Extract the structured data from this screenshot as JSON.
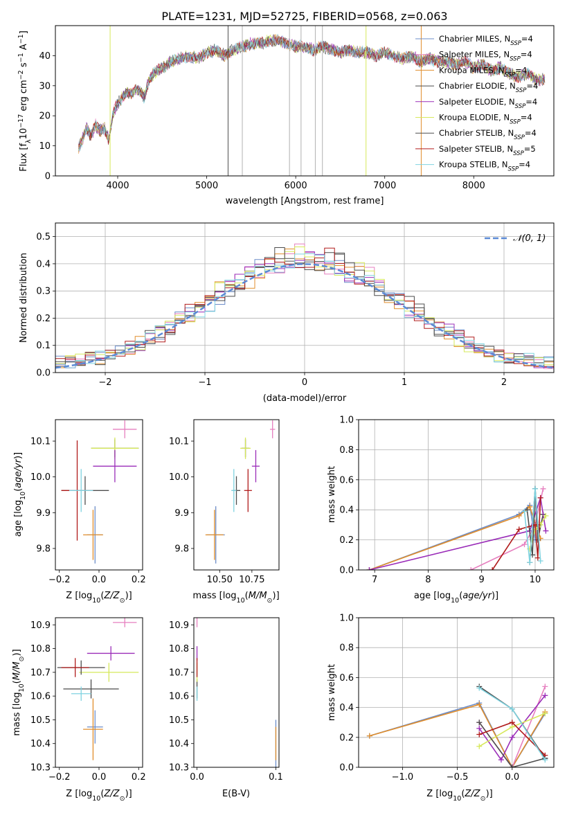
{
  "title": "PLATE=1231, MJD=52725, FIBERID=0568, z=0.063",
  "colors": {
    "Chabrier MILES": "#6b8cc8",
    "Salpeter MILES": "#e67fbf",
    "Kroupa MILES": "#e08d2b",
    "Chabrier ELODIE": "#4a4a4a",
    "Salpeter ELODIE": "#9a2cb8",
    "Kroupa ELODIE": "#d6e85a",
    "Chabrier STELIB": "#4d4d4d",
    "Salpeter STELIB": "#b01a1a",
    "Kroupa STELIB": "#7fd3e0"
  },
  "legend": [
    {
      "text": "Chabrier MILES, N",
      "sub": "SSP",
      "tail": "=4",
      "key": "Chabrier MILES"
    },
    {
      "text": "Salpeter MILES, N",
      "sub": "SSP",
      "tail": "=4",
      "key": "Salpeter MILES"
    },
    {
      "text": "Kroupa MILES, N",
      "sub": "SSP",
      "tail": "=4",
      "key": "Kroupa MILES"
    },
    {
      "text": "Chabrier ELODIE, N",
      "sub": "SSP",
      "tail": "=4",
      "key": "Chabrier ELODIE"
    },
    {
      "text": "Salpeter ELODIE, N",
      "sub": "SSP",
      "tail": "=4",
      "key": "Salpeter ELODIE"
    },
    {
      "text": "Kroupa ELODIE, N",
      "sub": "SSP",
      "tail": "=4",
      "key": "Kroupa ELODIE"
    },
    {
      "text": "Chabrier STELIB, N",
      "sub": "SSP",
      "tail": "=4",
      "key": "Chabrier STELIB"
    },
    {
      "text": "Salpeter STELIB, N",
      "sub": "SSP",
      "tail": "=5",
      "key": "Salpeter STELIB"
    },
    {
      "text": "Kroupa STELIB, N",
      "sub": "SSP",
      "tail": "=4",
      "key": "Kroupa STELIB"
    }
  ],
  "chart_data": [
    {
      "type": "line",
      "xlabel": "wavelength [Angstrom, rest frame]",
      "ylabel": "Flux [fλ10⁻¹⁷ erg cm⁻² s⁻¹ A⁻¹]",
      "xlim": [
        3300,
        8900
      ],
      "ylim": [
        0,
        50
      ],
      "xticks": [
        4000,
        5000,
        6000,
        7000,
        8000
      ],
      "yticks": [
        0,
        10,
        20,
        30,
        40
      ],
      "grid": false,
      "legend_position": "top-right",
      "spectrum_anchors": [
        [
          3560,
          9
        ],
        [
          3600,
          12
        ],
        [
          3650,
          16
        ],
        [
          3700,
          13
        ],
        [
          3750,
          17
        ],
        [
          3800,
          15
        ],
        [
          3850,
          16
        ],
        [
          3900,
          12
        ],
        [
          3950,
          21
        ],
        [
          4000,
          24
        ],
        [
          4050,
          26
        ],
        [
          4100,
          28
        ],
        [
          4150,
          27
        ],
        [
          4200,
          29
        ],
        [
          4250,
          28
        ],
        [
          4300,
          26
        ],
        [
          4350,
          32
        ],
        [
          4400,
          34
        ],
        [
          4450,
          35
        ],
        [
          4500,
          36
        ],
        [
          4600,
          38
        ],
        [
          4700,
          39
        ],
        [
          4800,
          40
        ],
        [
          4900,
          39
        ],
        [
          5000,
          41
        ],
        [
          5100,
          42
        ],
        [
          5200,
          40
        ],
        [
          5300,
          42
        ],
        [
          5400,
          43
        ],
        [
          5500,
          44
        ],
        [
          5600,
          44
        ],
        [
          5700,
          45
        ],
        [
          5800,
          45
        ],
        [
          5900,
          44
        ],
        [
          6000,
          43
        ],
        [
          6100,
          43
        ],
        [
          6200,
          42
        ],
        [
          6300,
          43
        ],
        [
          6400,
          42
        ],
        [
          6500,
          41
        ],
        [
          6600,
          42
        ],
        [
          6700,
          41
        ],
        [
          6800,
          41
        ],
        [
          6900,
          40
        ],
        [
          7000,
          41
        ],
        [
          7100,
          40
        ],
        [
          7200,
          39
        ],
        [
          7300,
          40
        ],
        [
          7400,
          38
        ],
        [
          7500,
          39
        ],
        [
          7600,
          38
        ],
        [
          7700,
          38
        ],
        [
          7800,
          37
        ],
        [
          7900,
          38
        ],
        [
          8000,
          36
        ],
        [
          8100,
          37
        ],
        [
          8200,
          35
        ],
        [
          8300,
          36
        ],
        [
          8400,
          34
        ],
        [
          8500,
          33
        ],
        [
          8600,
          34
        ],
        [
          8700,
          32
        ],
        [
          8800,
          32
        ]
      ],
      "masked_lines": [
        3915,
        5240,
        5400,
        5930,
        6060,
        6220,
        6300,
        6790,
        7410
      ]
    },
    {
      "type": "histogram",
      "xlabel": "(data-model)/error",
      "ylabel": "Normed distribution",
      "xlim": [
        -2.5,
        2.5
      ],
      "ylim": [
        0,
        0.55
      ],
      "xticks": [
        -2,
        -1,
        0,
        1,
        2
      ],
      "yticks": [
        0.0,
        0.1,
        0.2,
        0.3,
        0.4,
        0.5
      ],
      "grid": true,
      "legend": "𝒩(0, 1)",
      "legend_position": "top-right",
      "bin_width": 0.1,
      "reference_curve": "normal(0,1)"
    },
    {
      "type": "errorbar",
      "xlabel": "Z [log₁₀(Z/Z⊙)]",
      "ylabel": "age  [log₁₀(age/yr)]",
      "xlim": [
        -0.22,
        0.22
      ],
      "ylim": [
        9.74,
        10.16
      ],
      "xticks": [
        -0.2,
        0.0,
        0.2
      ],
      "yticks": [
        9.8,
        9.9,
        10.0,
        10.1
      ],
      "points": [
        {
          "key": "Chabrier MILES",
          "x": -0.02,
          "y": 9.838,
          "xerr": 0.04,
          "yerr": 0.08
        },
        {
          "key": "Kroupa MILES",
          "x": -0.03,
          "y": 9.838,
          "xerr": 0.05,
          "yerr": 0.07
        },
        {
          "key": "Salpeter MILES",
          "x": 0.13,
          "y": 10.133,
          "xerr": 0.06,
          "yerr": 0.025
        },
        {
          "key": "Chabrier ELODIE",
          "x": 0.08,
          "y": 10.08,
          "xerr": 0.12,
          "yerr": 0.025
        },
        {
          "key": "Kroupa ELODIE",
          "x": 0.08,
          "y": 10.08,
          "xerr": 0.12,
          "yerr": 0.03
        },
        {
          "key": "Salpeter ELODIE",
          "x": 0.08,
          "y": 10.03,
          "xerr": 0.11,
          "yerr": 0.045
        },
        {
          "key": "Chabrier STELIB",
          "x": -0.07,
          "y": 9.962,
          "xerr": 0.12,
          "yerr": 0.04
        },
        {
          "key": "Salpeter STELIB",
          "x": -0.11,
          "y": 9.962,
          "xerr": 0.08,
          "yerr": 0.14
        },
        {
          "key": "Kroupa STELIB",
          "x": -0.09,
          "y": 9.962,
          "xerr": 0.06,
          "yerr": 0.06
        }
      ]
    },
    {
      "type": "errorbar",
      "xlabel": "mass [log₁₀(M/M⊙)]",
      "xlim": [
        10.3,
        10.96
      ],
      "ylim": [
        9.74,
        10.16
      ],
      "xticks": [
        10.5,
        10.75
      ],
      "yticks": [
        9.8,
        9.9,
        10.0,
        10.1
      ],
      "points": [
        {
          "key": "Chabrier MILES",
          "x": 10.47,
          "y": 9.838,
          "xerr": 0.07,
          "yerr": 0.08
        },
        {
          "key": "Kroupa MILES",
          "x": 10.46,
          "y": 9.838,
          "xerr": 0.07,
          "yerr": 0.07
        },
        {
          "key": "Salpeter MILES",
          "x": 10.91,
          "y": 10.133,
          "xerr": 0.02,
          "yerr": 0.025
        },
        {
          "key": "Chabrier ELODIE",
          "x": 10.7,
          "y": 10.08,
          "xerr": 0.03,
          "yerr": 0.025
        },
        {
          "key": "Kroupa ELODIE",
          "x": 10.7,
          "y": 10.08,
          "xerr": 0.04,
          "yerr": 0.03
        },
        {
          "key": "Salpeter ELODIE",
          "x": 10.78,
          "y": 10.03,
          "xerr": 0.03,
          "yerr": 0.045
        },
        {
          "key": "Chabrier STELIB",
          "x": 10.63,
          "y": 9.962,
          "xerr": 0.03,
          "yerr": 0.04
        },
        {
          "key": "Salpeter STELIB",
          "x": 10.72,
          "y": 9.962,
          "xerr": 0.03,
          "yerr": 0.06
        },
        {
          "key": "Kroupa STELIB",
          "x": 10.61,
          "y": 9.962,
          "xerr": 0.02,
          "yerr": 0.06
        }
      ]
    },
    {
      "type": "line",
      "xlabel": "age  [log₁₀(age/yr)]",
      "ylabel": "mass weight",
      "xlim": [
        6.7,
        10.35
      ],
      "ylim": [
        0,
        1.0
      ],
      "xticks": [
        7,
        8,
        9,
        10
      ],
      "yticks": [
        0.0,
        0.2,
        0.4,
        0.6,
        0.8,
        1.0
      ],
      "grid": true,
      "series": [
        {
          "key": "Chabrier MILES",
          "x": [
            6.9,
            9.7,
            9.9,
            10.0
          ],
          "y": [
            0.0,
            0.37,
            0.43,
            0.2
          ]
        },
        {
          "key": "Kroupa MILES",
          "x": [
            6.9,
            9.7,
            9.9,
            10.1
          ],
          "y": [
            0.0,
            0.36,
            0.42,
            0.21
          ]
        },
        {
          "key": "Salpeter MILES",
          "x": [
            8.8,
            9.8,
            10.0,
            10.15
          ],
          "y": [
            0.0,
            0.17,
            0.3,
            0.54
          ]
        },
        {
          "key": "Chabrier ELODIE",
          "x": [
            9.9,
            10.0,
            10.05,
            10.15
          ],
          "y": [
            0.05,
            0.54,
            0.2,
            0.37
          ]
        },
        {
          "key": "Salpeter ELODIE",
          "x": [
            6.9,
            9.9,
            10.1,
            10.2
          ],
          "y": [
            0.0,
            0.26,
            0.48,
            0.26
          ]
        },
        {
          "key": "Kroupa ELODIE",
          "x": [
            9.9,
            10.0,
            10.1,
            10.2
          ],
          "y": [
            0.14,
            0.27,
            0.3,
            0.36
          ]
        },
        {
          "key": "Chabrier STELIB",
          "x": [
            9.85,
            9.95,
            10.0,
            10.05
          ],
          "y": [
            0.4,
            0.1,
            0.54,
            0.3
          ]
        },
        {
          "key": "Salpeter STELIB",
          "x": [
            9.2,
            9.7,
            10.0,
            10.05,
            10.1
          ],
          "y": [
            0.0,
            0.27,
            0.3,
            0.08,
            0.48
          ]
        },
        {
          "key": "Kroupa STELIB",
          "x": [
            9.8,
            9.9,
            10.0,
            10.1
          ],
          "y": [
            0.39,
            0.05,
            0.54,
            0.06
          ]
        }
      ]
    },
    {
      "type": "errorbar",
      "xlabel": "Z [log₁₀(Z/Z⊙)]",
      "ylabel": "mass [log₁₀(M/M⊙)]",
      "xlim": [
        -0.22,
        0.22
      ],
      "ylim": [
        10.3,
        10.93
      ],
      "xticks": [
        -0.2,
        0.0,
        0.2
      ],
      "yticks": [
        10.3,
        10.4,
        10.5,
        10.6,
        10.7,
        10.8,
        10.9
      ],
      "points": [
        {
          "key": "Chabrier MILES",
          "x": -0.02,
          "y": 10.47,
          "xerr": 0.04,
          "yerr": 0.07
        },
        {
          "key": "Kroupa MILES",
          "x": -0.03,
          "y": 10.46,
          "xerr": 0.05,
          "yerr": 0.13
        },
        {
          "key": "Salpeter MILES",
          "x": 0.13,
          "y": 10.91,
          "xerr": 0.06,
          "yerr": 0.02
        },
        {
          "key": "Chabrier ELODIE",
          "x": -0.04,
          "y": 10.63,
          "xerr": 0.14,
          "yerr": 0.04
        },
        {
          "key": "Kroupa ELODIE",
          "x": 0.05,
          "y": 10.7,
          "xerr": 0.15,
          "yerr": 0.04
        },
        {
          "key": "Salpeter ELODIE",
          "x": 0.06,
          "y": 10.78,
          "xerr": 0.12,
          "yerr": 0.03
        },
        {
          "key": "Chabrier STELIB",
          "x": -0.09,
          "y": 10.72,
          "xerr": 0.12,
          "yerr": 0.03
        },
        {
          "key": "Salpeter STELIB",
          "x": -0.12,
          "y": 10.72,
          "xerr": 0.07,
          "yerr": 0.04
        },
        {
          "key": "Kroupa STELIB",
          "x": -0.09,
          "y": 10.61,
          "xerr": 0.05,
          "yerr": 0.03
        }
      ]
    },
    {
      "type": "errorbar",
      "xlabel": "E(B-V)",
      "xlim": [
        -0.004,
        0.104
      ],
      "ylim": [
        10.3,
        10.93
      ],
      "xticks": [
        0.0,
        0.1
      ],
      "yticks": [
        10.3,
        10.4,
        10.5,
        10.6,
        10.7,
        10.8,
        10.9
      ],
      "points": [
        {
          "key": "Chabrier MILES",
          "x": 0.1,
          "y": 10.4,
          "xerr": 0,
          "yerr": 0.1
        },
        {
          "key": "Kroupa MILES",
          "x": 0.1,
          "y": 10.4,
          "xerr": 0,
          "yerr": 0.07
        },
        {
          "key": "Salpeter MILES",
          "x": 0.0,
          "y": 10.91,
          "xerr": 0,
          "yerr": 0.02
        },
        {
          "key": "Chabrier ELODIE",
          "x": 0.0,
          "y": 10.63,
          "xerr": 0,
          "yerr": 0.04
        },
        {
          "key": "Kroupa ELODIE",
          "x": 0.0,
          "y": 10.7,
          "xerr": 0,
          "yerr": 0.04
        },
        {
          "key": "Salpeter ELODIE",
          "x": 0.0,
          "y": 10.78,
          "xerr": 0,
          "yerr": 0.03
        },
        {
          "key": "Salpeter STELIB",
          "x": 0.0,
          "y": 10.72,
          "xerr": 0,
          "yerr": 0.04
        },
        {
          "key": "Kroupa STELIB",
          "x": 0.0,
          "y": 10.61,
          "xerr": 0,
          "yerr": 0.03
        }
      ]
    },
    {
      "type": "line",
      "xlabel": "Z [log₁₀(Z/Z⊙)]",
      "ylabel": "mass weight",
      "xlim": [
        -1.4,
        0.38
      ],
      "ylim": [
        0,
        1.0
      ],
      "xticks": [
        -1.0,
        -0.5,
        0.0
      ],
      "yticks": [
        0.0,
        0.2,
        0.4,
        0.6,
        0.8,
        1.0
      ],
      "grid": true,
      "series": [
        {
          "key": "Chabrier MILES",
          "x": [
            -1.3,
            -0.3,
            0.0,
            0.3
          ],
          "y": [
            0.21,
            0.43,
            0.0,
            0.36
          ]
        },
        {
          "key": "Kroupa MILES",
          "x": [
            -1.3,
            -0.3,
            0.0,
            0.3
          ],
          "y": [
            0.21,
            0.42,
            0.0,
            0.37
          ]
        },
        {
          "key": "Salpeter MILES",
          "x": [
            -0.3,
            0.0,
            0.3
          ],
          "y": [
            0.3,
            0.0,
            0.54
          ]
        },
        {
          "key": "Chabrier ELODIE",
          "x": [
            -0.3,
            0.0,
            0.3
          ],
          "y": [
            0.54,
            0.39,
            0.06
          ]
        },
        {
          "key": "Salpeter ELODIE",
          "x": [
            -0.3,
            -0.1,
            0.0,
            0.3
          ],
          "y": [
            0.26,
            0.05,
            0.2,
            0.48
          ]
        },
        {
          "key": "Kroupa ELODIE",
          "x": [
            -0.3,
            0.0,
            0.3
          ],
          "y": [
            0.14,
            0.27,
            0.36
          ]
        },
        {
          "key": "Chabrier STELIB",
          "x": [
            -0.3,
            0.0,
            0.3
          ],
          "y": [
            0.3,
            0.0,
            0.06
          ]
        },
        {
          "key": "Salpeter STELIB",
          "x": [
            -0.3,
            0.0,
            0.3
          ],
          "y": [
            0.22,
            0.3,
            0.08
          ]
        },
        {
          "key": "Kroupa STELIB",
          "x": [
            -0.3,
            0.0,
            0.3
          ],
          "y": [
            0.53,
            0.39,
            0.05
          ]
        }
      ]
    }
  ]
}
